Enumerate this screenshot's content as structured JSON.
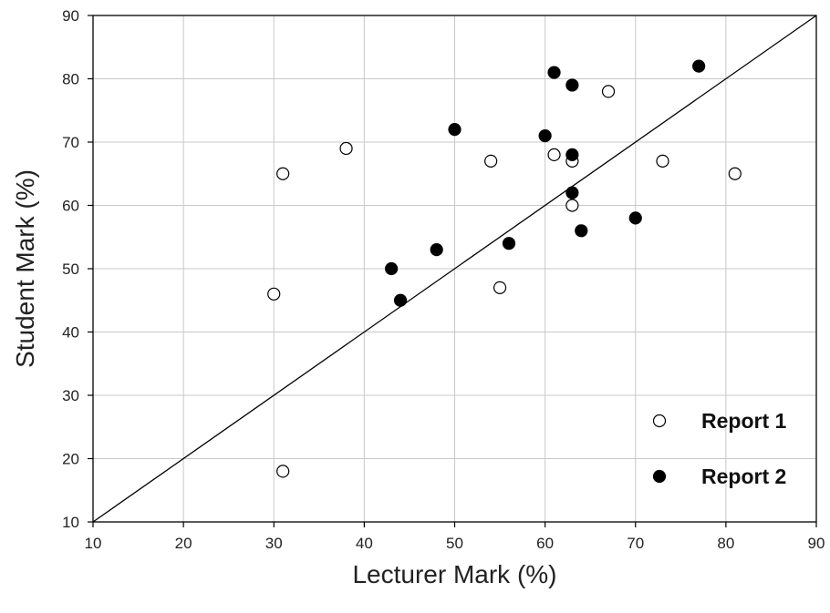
{
  "chart_data": {
    "type": "scatter",
    "title": "",
    "xlabel": "Lecturer Mark (%)",
    "ylabel": "Student Mark (%)",
    "xlim": [
      10,
      90
    ],
    "ylim": [
      10,
      90
    ],
    "xticks": [
      10,
      20,
      30,
      40,
      50,
      60,
      70,
      80,
      90
    ],
    "yticks": [
      10,
      20,
      30,
      40,
      50,
      60,
      70,
      80,
      90
    ],
    "grid": true,
    "legend_position": "bottom-right",
    "reference_line": {
      "type": "y=x",
      "from": [
        10,
        10
      ],
      "to": [
        90,
        90
      ]
    },
    "series": [
      {
        "name": "Report 1",
        "marker": "open-circle",
        "color": "#000000",
        "points": [
          [
            30,
            46
          ],
          [
            31,
            65
          ],
          [
            31,
            18
          ],
          [
            38,
            69
          ],
          [
            54,
            67
          ],
          [
            55,
            47
          ],
          [
            61,
            68
          ],
          [
            63,
            67
          ],
          [
            63,
            60
          ],
          [
            67,
            78
          ],
          [
            73,
            67
          ],
          [
            81,
            65
          ]
        ]
      },
      {
        "name": "Report 2",
        "marker": "filled-circle",
        "color": "#000000",
        "points": [
          [
            43,
            50
          ],
          [
            44,
            45
          ],
          [
            48,
            53
          ],
          [
            50,
            72
          ],
          [
            56,
            54
          ],
          [
            60,
            71
          ],
          [
            61,
            81
          ],
          [
            63,
            79
          ],
          [
            63,
            68
          ],
          [
            63,
            62
          ],
          [
            64,
            56
          ],
          [
            70,
            58
          ],
          [
            77,
            82
          ]
        ]
      }
    ]
  }
}
